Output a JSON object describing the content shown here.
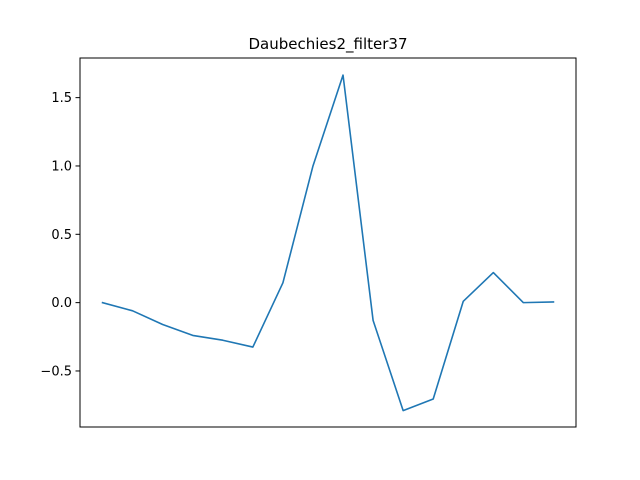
{
  "chart_data": {
    "type": "line",
    "title": "Daubechies2_filter37",
    "xlabel": "",
    "ylabel": "",
    "x": [
      0,
      1,
      2,
      3,
      4,
      5,
      6,
      7,
      8,
      9,
      10,
      11,
      12,
      13,
      14,
      15
    ],
    "series": [
      {
        "values": [
          0.0,
          -0.06,
          -0.16,
          -0.24,
          -0.275,
          -0.325,
          0.145,
          1.0,
          1.665,
          -0.13,
          -0.79,
          -0.705,
          0.01,
          0.22,
          0.0,
          0.005
        ]
      }
    ],
    "xlim": [
      -0.75,
      15.75
    ],
    "ylim": [
      -0.91,
      1.79
    ],
    "yticks": [
      -0.5,
      0.0,
      0.5,
      1.0,
      1.5
    ],
    "ytick_labels": [
      "−0.5",
      "0.0",
      "0.5",
      "1.0",
      "1.5"
    ],
    "show_xticks": false,
    "grid": false,
    "line_color": "#1f77b4"
  }
}
